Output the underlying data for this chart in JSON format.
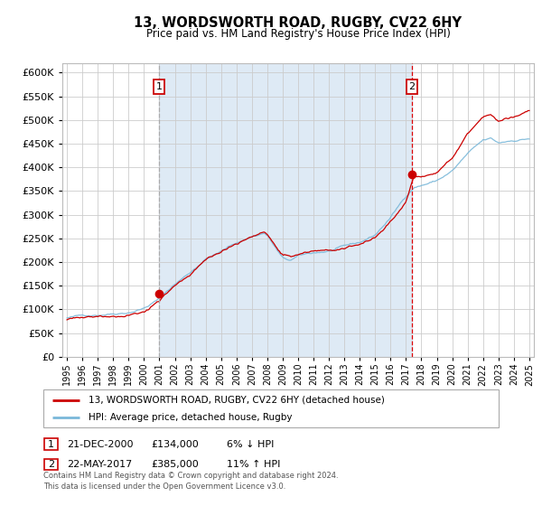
{
  "title": "13, WORDSWORTH ROAD, RUGBY, CV22 6HY",
  "subtitle": "Price paid vs. HM Land Registry's House Price Index (HPI)",
  "x_start_year": 1995,
  "x_end_year": 2025,
  "y_min": 0,
  "y_max": 620000,
  "y_ticks": [
    0,
    50000,
    100000,
    150000,
    200000,
    250000,
    300000,
    350000,
    400000,
    450000,
    500000,
    550000,
    600000
  ],
  "sale1_year": 2000.97,
  "sale1_price": 134000,
  "sale1_label": "1",
  "sale1_date": "21-DEC-2000",
  "sale2_year": 2017.38,
  "sale2_price": 385000,
  "sale2_label": "2",
  "sale2_date": "22-MAY-2017",
  "hpi_line_color": "#7ab8d9",
  "price_line_color": "#cc0000",
  "sale_dot_color": "#cc0000",
  "bg_shaded_color": "#deeaf5",
  "vline1_color": "#aaaaaa",
  "vline2_color": "#dd0000",
  "grid_color": "#cccccc",
  "legend_line1": "13, WORDSWORTH ROAD, RUGBY, CV22 6HY (detached house)",
  "legend_line2": "HPI: Average price, detached house, Rugby",
  "footer_line1": "Contains HM Land Registry data © Crown copyright and database right 2024.",
  "footer_line2": "This data is licensed under the Open Government Licence v3.0.",
  "ann1_date": "21-DEC-2000",
  "ann1_price": "£134,000",
  "ann1_pct": "6% ↓ HPI",
  "ann2_date": "22-MAY-2017",
  "ann2_price": "£385,000",
  "ann2_pct": "11% ↑ HPI",
  "hpi_keypoints_years": [
    1995,
    1997,
    1999,
    2000,
    2001,
    2002,
    2003,
    2004,
    2005,
    2006,
    2007,
    2007.8,
    2008,
    2009,
    2009.5,
    2010,
    2011,
    2012,
    2013,
    2014,
    2015,
    2016,
    2017,
    2017.5,
    2018,
    2019,
    2020,
    2021,
    2022,
    2022.5,
    2023,
    2024,
    2025
  ],
  "hpi_keypoints_vals": [
    82000,
    90000,
    100000,
    110000,
    130000,
    160000,
    185000,
    215000,
    230000,
    248000,
    262000,
    270000,
    265000,
    215000,
    210000,
    218000,
    224000,
    228000,
    235000,
    242000,
    258000,
    295000,
    340000,
    360000,
    365000,
    375000,
    395000,
    430000,
    455000,
    458000,
    448000,
    455000,
    460000
  ],
  "price_keypoints_years": [
    1995,
    1997,
    1999,
    2000,
    2001,
    2002,
    2003,
    2004,
    2005,
    2006,
    2007,
    2007.8,
    2008,
    2009,
    2009.5,
    2010,
    2011,
    2012,
    2013,
    2014,
    2015,
    2016,
    2017,
    2017.5,
    2018,
    2019,
    2020,
    2021,
    2022,
    2022.5,
    2023,
    2024,
    2025
  ],
  "price_keypoints_vals": [
    78000,
    86000,
    96000,
    105000,
    128000,
    153000,
    178000,
    208000,
    220000,
    238000,
    252000,
    260000,
    255000,
    210000,
    205000,
    213000,
    220000,
    225000,
    232000,
    238000,
    254000,
    285000,
    330000,
    385000,
    390000,
    400000,
    430000,
    480000,
    510000,
    515000,
    500000,
    510000,
    520000
  ]
}
